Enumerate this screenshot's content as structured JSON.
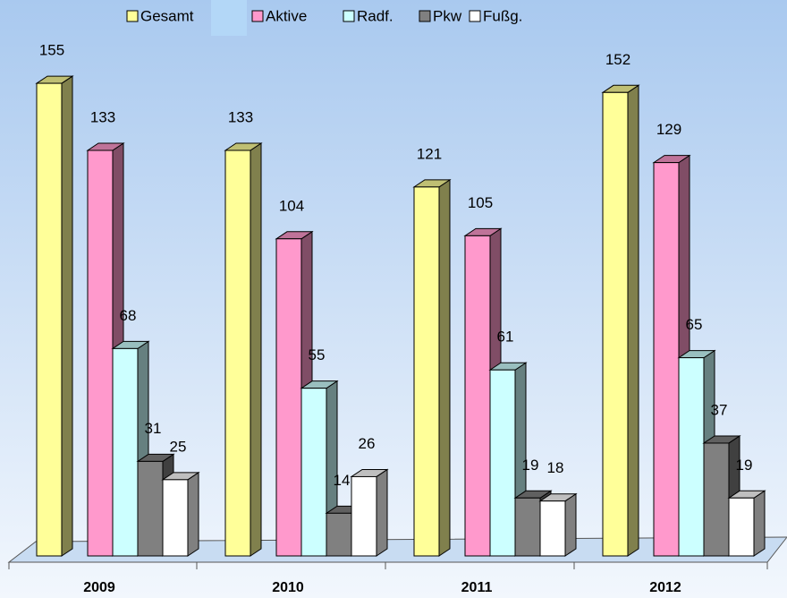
{
  "chart_data": {
    "type": "bar3d",
    "categories": [
      "2009",
      "2010",
      "2011",
      "2012"
    ],
    "series": [
      {
        "name": "Gesamt",
        "color": "#ffff99",
        "values": [
          155,
          133,
          121,
          152
        ]
      },
      {
        "name": "Aktive",
        "color": "#ff99cc",
        "values": [
          133,
          104,
          105,
          129
        ]
      },
      {
        "name": "Radf.",
        "color": "#ccffff",
        "values": [
          68,
          55,
          61,
          65
        ]
      },
      {
        "name": "Pkw",
        "color": "#808080",
        "values": [
          31,
          14,
          19,
          37
        ]
      },
      {
        "name": "Fußg.",
        "color": "#ffffff",
        "values": [
          25,
          26,
          18,
          19
        ]
      }
    ],
    "ylim": [
      0,
      160
    ],
    "legend": "top"
  }
}
